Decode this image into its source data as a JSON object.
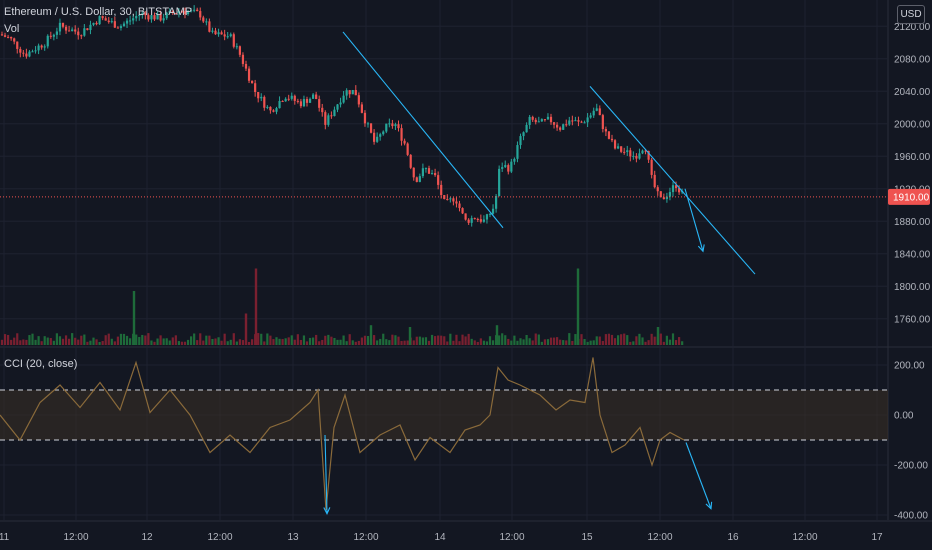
{
  "header": {
    "symbol": "Ethereum / U.S. Dollar, 30, BITSTAMP",
    "vol_label": "Vol",
    "currency": "USD"
  },
  "indicator": {
    "label": "CCI (20, close)"
  },
  "colors": {
    "background": "#131722",
    "up": "#26a69a",
    "down": "#ef5350",
    "vol_up": "#1e6b3a",
    "vol_down": "#7a2030",
    "trend": "#29b6f6",
    "cci_line": "#8a6a3a",
    "cci_band": "#3a3024",
    "price_line": "#ef5350",
    "grid": "#1e2230"
  },
  "chart_data": [
    {
      "type": "candlestick",
      "title": "Ethereum / U.S. Dollar, 30, BITSTAMP",
      "ylim": [
        1740,
        2140
      ],
      "y_ticks": [
        "2120.00",
        "2080.00",
        "2040.00",
        "2000.00",
        "1960.00",
        "1920.00",
        "1880.00",
        "1840.00",
        "1800.00",
        "1760.00"
      ],
      "current_price": "1910.00",
      "x_ticks": [
        "11",
        "12:00",
        "12",
        "12:00",
        "13",
        "12:00",
        "14",
        "12:00",
        "15",
        "12:00",
        "16",
        "12:00",
        "17"
      ],
      "close_series": [
        {
          "x": 0,
          "y": 2110
        },
        {
          "x": 10,
          "y": 2105
        },
        {
          "x": 25,
          "y": 2085
        },
        {
          "x": 45,
          "y": 2100
        },
        {
          "x": 60,
          "y": 2120
        },
        {
          "x": 80,
          "y": 2112
        },
        {
          "x": 100,
          "y": 2130
        },
        {
          "x": 120,
          "y": 2120
        },
        {
          "x": 140,
          "y": 2135
        },
        {
          "x": 160,
          "y": 2130
        },
        {
          "x": 180,
          "y": 2140
        },
        {
          "x": 200,
          "y": 2135
        },
        {
          "x": 212,
          "y": 2110
        },
        {
          "x": 230,
          "y": 2108
        },
        {
          "x": 240,
          "y": 2085
        },
        {
          "x": 255,
          "y": 2040
        },
        {
          "x": 270,
          "y": 2015
        },
        {
          "x": 285,
          "y": 2035
        },
        {
          "x": 300,
          "y": 2025
        },
        {
          "x": 315,
          "y": 2035
        },
        {
          "x": 325,
          "y": 2000
        },
        {
          "x": 335,
          "y": 2020
        },
        {
          "x": 345,
          "y": 2040
        },
        {
          "x": 355,
          "y": 2040
        },
        {
          "x": 365,
          "y": 2005
        },
        {
          "x": 375,
          "y": 1975
        },
        {
          "x": 385,
          "y": 1995
        },
        {
          "x": 395,
          "y": 2000
        },
        {
          "x": 405,
          "y": 1975
        },
        {
          "x": 415,
          "y": 1930
        },
        {
          "x": 425,
          "y": 1945
        },
        {
          "x": 435,
          "y": 1935
        },
        {
          "x": 445,
          "y": 1900
        },
        {
          "x": 455,
          "y": 1910
        },
        {
          "x": 465,
          "y": 1880
        },
        {
          "x": 475,
          "y": 1885
        },
        {
          "x": 485,
          "y": 1880
        },
        {
          "x": 495,
          "y": 1900
        },
        {
          "x": 500,
          "y": 1950
        },
        {
          "x": 510,
          "y": 1945
        },
        {
          "x": 520,
          "y": 1980
        },
        {
          "x": 530,
          "y": 2005
        },
        {
          "x": 540,
          "y": 2000
        },
        {
          "x": 550,
          "y": 2005
        },
        {
          "x": 560,
          "y": 1995
        },
        {
          "x": 570,
          "y": 2005
        },
        {
          "x": 580,
          "y": 2000
        },
        {
          "x": 590,
          "y": 2010
        },
        {
          "x": 596,
          "y": 2020
        },
        {
          "x": 605,
          "y": 1990
        },
        {
          "x": 615,
          "y": 1970
        },
        {
          "x": 625,
          "y": 1965
        },
        {
          "x": 635,
          "y": 1960
        },
        {
          "x": 645,
          "y": 1975
        },
        {
          "x": 652,
          "y": 1930
        },
        {
          "x": 660,
          "y": 1905
        },
        {
          "x": 668,
          "y": 1915
        },
        {
          "x": 676,
          "y": 1925
        },
        {
          "x": 684,
          "y": 1910
        }
      ],
      "volume_series": [
        {
          "x": 134,
          "v": 0.6
        },
        {
          "x": 246,
          "v": 0.35
        },
        {
          "x": 256,
          "v": 0.85
        },
        {
          "x": 371,
          "v": 0.22
        },
        {
          "x": 410,
          "v": 0.2
        },
        {
          "x": 497,
          "v": 0.22
        },
        {
          "x": 578,
          "v": 0.85
        },
        {
          "x": 658,
          "v": 0.2
        }
      ]
    },
    {
      "type": "line",
      "title": "CCI (20, close)",
      "ylim": [
        -420,
        240
      ],
      "y_ticks": [
        "200.00",
        "0.00",
        "-200.00",
        "-400.00"
      ],
      "bands": [
        -100,
        100
      ],
      "series": [
        {
          "x": 0,
          "y": 0
        },
        {
          "x": 20,
          "y": -100
        },
        {
          "x": 40,
          "y": 50
        },
        {
          "x": 60,
          "y": 120
        },
        {
          "x": 80,
          "y": 30
        },
        {
          "x": 100,
          "y": 130
        },
        {
          "x": 120,
          "y": 20
        },
        {
          "x": 136,
          "y": 210
        },
        {
          "x": 150,
          "y": 10
        },
        {
          "x": 170,
          "y": 100
        },
        {
          "x": 190,
          "y": 0
        },
        {
          "x": 210,
          "y": -150
        },
        {
          "x": 230,
          "y": -80
        },
        {
          "x": 250,
          "y": -150
        },
        {
          "x": 270,
          "y": -50
        },
        {
          "x": 290,
          "y": -20
        },
        {
          "x": 310,
          "y": 50
        },
        {
          "x": 318,
          "y": 100
        },
        {
          "x": 326,
          "y": -380
        },
        {
          "x": 334,
          "y": -50
        },
        {
          "x": 345,
          "y": 80
        },
        {
          "x": 360,
          "y": -150
        },
        {
          "x": 380,
          "y": -80
        },
        {
          "x": 400,
          "y": -40
        },
        {
          "x": 415,
          "y": -180
        },
        {
          "x": 430,
          "y": -90
        },
        {
          "x": 450,
          "y": -150
        },
        {
          "x": 465,
          "y": -60
        },
        {
          "x": 480,
          "y": -40
        },
        {
          "x": 490,
          "y": 0
        },
        {
          "x": 498,
          "y": 190
        },
        {
          "x": 508,
          "y": 140
        },
        {
          "x": 520,
          "y": 120
        },
        {
          "x": 540,
          "y": 80
        },
        {
          "x": 556,
          "y": 20
        },
        {
          "x": 570,
          "y": 60
        },
        {
          "x": 585,
          "y": 50
        },
        {
          "x": 593,
          "y": 230
        },
        {
          "x": 600,
          "y": 0
        },
        {
          "x": 612,
          "y": -150
        },
        {
          "x": 625,
          "y": -120
        },
        {
          "x": 640,
          "y": -50
        },
        {
          "x": 652,
          "y": -200
        },
        {
          "x": 660,
          "y": -100
        },
        {
          "x": 670,
          "y": -70
        },
        {
          "x": 684,
          "y": -100
        }
      ]
    }
  ],
  "annotations": [
    {
      "type": "trendline",
      "pane": "price",
      "x1": 343,
      "y1": 2113,
      "x2": 503,
      "y2": 1872
    },
    {
      "type": "trendline",
      "pane": "price",
      "x1": 590,
      "y1": 2046,
      "x2": 755,
      "y2": 1815
    },
    {
      "type": "arrow",
      "pane": "price",
      "x1": 685,
      "y1": 1920,
      "x2": 703,
      "y2": 1843
    },
    {
      "type": "arrow",
      "pane": "cci",
      "x1": 325,
      "y1": -80,
      "x2": 327,
      "y2": -395
    },
    {
      "type": "arrow",
      "pane": "cci",
      "x1": 686,
      "y1": -110,
      "x2": 711,
      "y2": -375
    }
  ]
}
